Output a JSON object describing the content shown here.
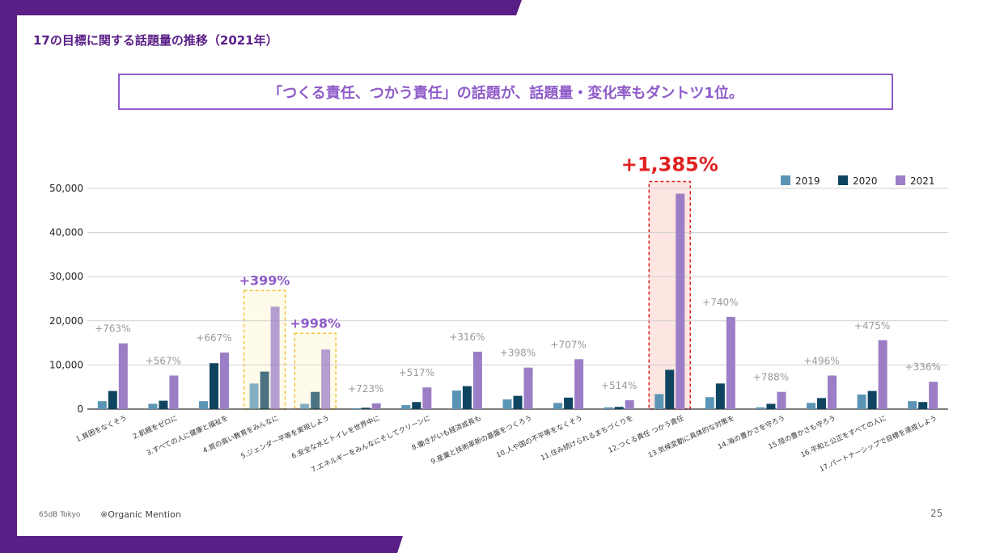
{
  "page": {
    "title": "17の目標に関する話題量の推移（2021年）",
    "headline": "「つくる責任、つかう責任」の話題が、話題量・変化率もダントツ1位。",
    "footer_org": "65dB Tokyo",
    "footer_note": "※Organic Mention",
    "page_number": "25"
  },
  "chart_data": {
    "type": "bar",
    "title": "",
    "xlabel": "",
    "ylabel": "",
    "ylim": [
      0,
      50000
    ],
    "yticks": [
      "0",
      "10,000",
      "20,000",
      "30,000",
      "40,000",
      "50,000"
    ],
    "ytick_values": [
      0,
      10000,
      20000,
      30000,
      40000,
      50000
    ],
    "legend_position": "top-right",
    "categories": [
      "1.貧困をなくそう",
      "2.飢餓をゼロに",
      "3.すべての人に健康と福祉を",
      "4.質の高い教育をみんなに",
      "5.ジェンダー平等を実現しよう",
      "6.安全な水とトイレを世界中に",
      "7.エネルギーをみんなにそしてクリーンに",
      "8.働きがいも経済成長も",
      "9.産業と技術革新の基盤をつくろう",
      "10.人や国の不平等をなくそう",
      "11.住み続けられるまちづくりを",
      "12.つくる責任 つかう責任",
      "13.気候変動に具体的な対策を",
      "14.海の豊かさを守ろう",
      "15.陸の豊かさも守ろう",
      "16.平和と公正をすべての人に",
      "17.パートナーシップで目標を達成しよう"
    ],
    "series": [
      {
        "name": "2019",
        "color": "#5b95b5",
        "values": [
          1800,
          1200,
          1800,
          5800,
          1200,
          200,
          900,
          4200,
          2200,
          1400,
          400,
          3400,
          2700,
          400,
          1400,
          3300,
          1800
        ]
      },
      {
        "name": "2020",
        "color": "#0f4460",
        "values": [
          4100,
          1900,
          10400,
          8500,
          3900,
          300,
          1600,
          5200,
          3000,
          2600,
          500,
          8900,
          5800,
          1200,
          2500,
          4100,
          1600
        ]
      },
      {
        "name": "2021",
        "color": "#9b7ec5",
        "values": [
          14900,
          7600,
          12800,
          23200,
          13500,
          1300,
          4900,
          13000,
          9400,
          11300,
          2000,
          48800,
          20900,
          3900,
          7600,
          15600,
          6200
        ]
      }
    ],
    "change_labels": [
      "+763%",
      "+567%",
      "+667%",
      "+399%",
      "+998%",
      "+723%",
      "+517%",
      "+316%",
      "+398%",
      "+707%",
      "+514%",
      "+1,385%",
      "+740%",
      "+788%",
      "+496%",
      "+475%",
      "+336%"
    ],
    "highlighted": [
      {
        "index": 3,
        "style": "yellow",
        "label": "+399%"
      },
      {
        "index": 4,
        "style": "yellow",
        "label": "+998%"
      },
      {
        "index": 11,
        "style": "red",
        "label": "+1,385%"
      }
    ],
    "colors": {
      "accent_purple": "#5a1e87",
      "highlight_purple": "#8e5cc8",
      "highlight_red": "#e02020",
      "yellow_box": "#f1c232",
      "red_box_fill": "#fde5e2"
    }
  }
}
